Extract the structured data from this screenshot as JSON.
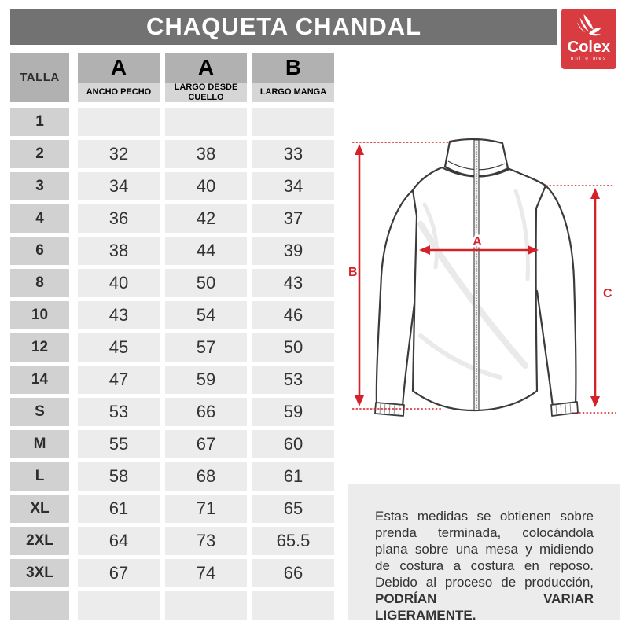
{
  "title": "CHAQUETA CHANDAL",
  "logo": {
    "brand": "Colex",
    "tagline": "uniformes"
  },
  "table": {
    "size_header": "TALLA",
    "columns": [
      {
        "letter": "A",
        "label": "ANCHO PECHO"
      },
      {
        "letter": "A",
        "label": "LARGO DESDE CUELLO"
      },
      {
        "letter": "B",
        "label": "LARGO MANGA"
      }
    ],
    "rows": [
      {
        "size": "1",
        "values": [
          "",
          "",
          ""
        ]
      },
      {
        "size": "2",
        "values": [
          "32",
          "38",
          "33"
        ]
      },
      {
        "size": "3",
        "values": [
          "34",
          "40",
          "34"
        ]
      },
      {
        "size": "4",
        "values": [
          "36",
          "42",
          "37"
        ]
      },
      {
        "size": "6",
        "values": [
          "38",
          "44",
          "39"
        ]
      },
      {
        "size": "8",
        "values": [
          "40",
          "50",
          "43"
        ]
      },
      {
        "size": "10",
        "values": [
          "43",
          "54",
          "46"
        ]
      },
      {
        "size": "12",
        "values": [
          "45",
          "57",
          "50"
        ]
      },
      {
        "size": "14",
        "values": [
          "47",
          "59",
          "53"
        ]
      },
      {
        "size": "S",
        "values": [
          "53",
          "66",
          "59"
        ]
      },
      {
        "size": "M",
        "values": [
          "55",
          "67",
          "60"
        ]
      },
      {
        "size": "L",
        "values": [
          "58",
          "68",
          "61"
        ]
      },
      {
        "size": "XL",
        "values": [
          "61",
          "71",
          "65"
        ]
      },
      {
        "size": "2XL",
        "values": [
          "64",
          "73",
          "65.5"
        ]
      },
      {
        "size": "3XL",
        "values": [
          "67",
          "74",
          "66"
        ]
      },
      {
        "size": "",
        "values": [
          "",
          "",
          ""
        ]
      }
    ]
  },
  "diagram": {
    "label_a": "A",
    "label_b": "B",
    "label_c": "C"
  },
  "note": {
    "text": "Estas medidas se obtienen sobre prenda terminada, colocándola plana sobre una mesa y midiendo de costura a costura en reposo. Debido al proceso de producción, ",
    "emphasis": "PODRÍAN VARIAR LIGERAMENTE."
  },
  "colors": {
    "header_bar": "#727272",
    "logo_red": "#d83c41",
    "arrow_red": "#d4212a",
    "header_cell": "#b1b1b1",
    "sublabel_cell": "#d6d6d6",
    "row_label_cell": "#d1d1d1",
    "value_cell": "#ececec"
  }
}
